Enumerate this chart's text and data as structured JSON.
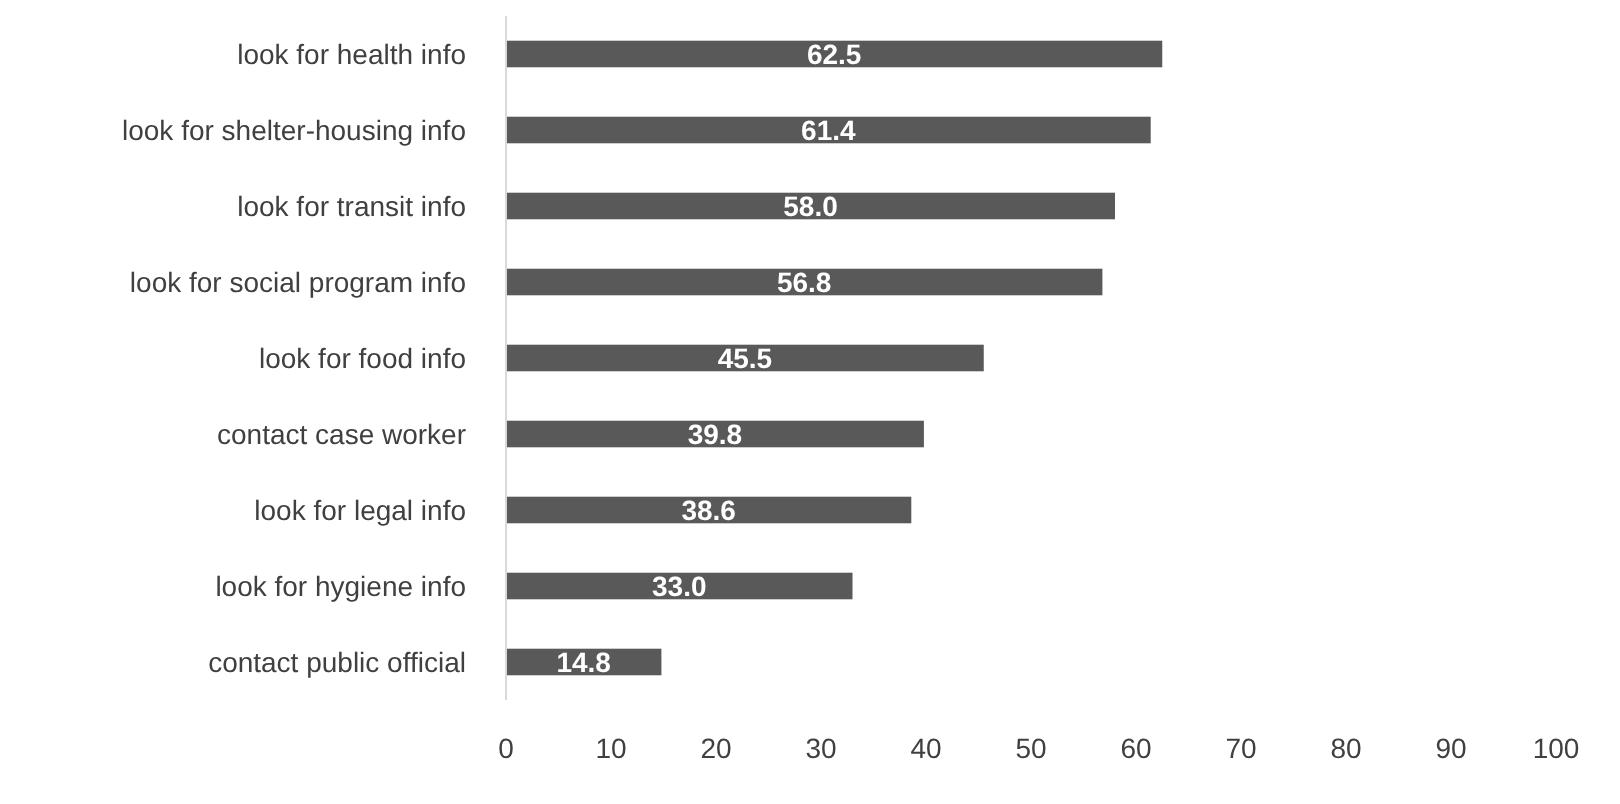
{
  "chart_data": {
    "type": "bar",
    "orientation": "horizontal",
    "categories": [
      "look for health info",
      "look for shelter-housing info",
      "look for transit info",
      "look for social program info",
      "look for food info",
      "contact case worker",
      "look for legal info",
      "look for hygiene info",
      "contact public official"
    ],
    "values": [
      62.5,
      61.4,
      58.0,
      56.8,
      45.5,
      39.8,
      38.6,
      33.0,
      14.8
    ],
    "value_labels": [
      "62.5",
      "61.4",
      "58.0",
      "56.8",
      "45.5",
      "39.8",
      "38.6",
      "33.0",
      "14.8"
    ],
    "color": "#595959",
    "xlim": [
      0,
      100
    ],
    "xticks": [
      0,
      10,
      20,
      30,
      40,
      50,
      60,
      70,
      80,
      90,
      100
    ],
    "grid": false
  }
}
